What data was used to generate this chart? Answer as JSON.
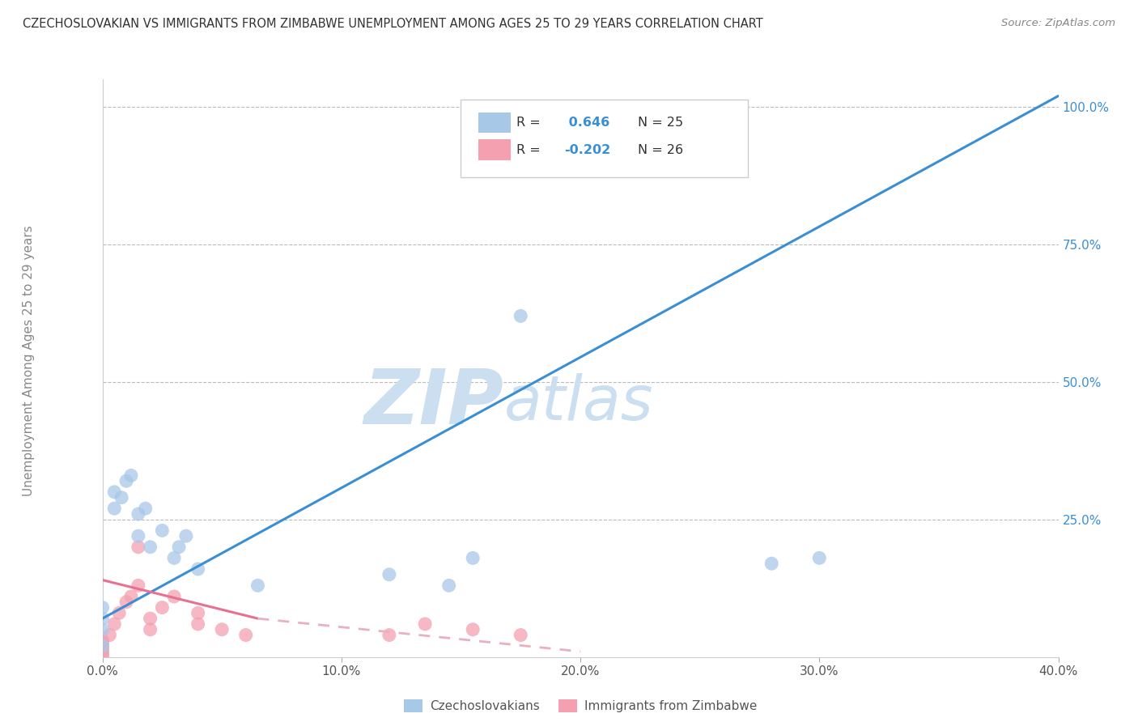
{
  "title": "CZECHOSLOVAKIAN VS IMMIGRANTS FROM ZIMBABWE UNEMPLOYMENT AMONG AGES 25 TO 29 YEARS CORRELATION CHART",
  "source": "Source: ZipAtlas.com",
  "ylabel": "Unemployment Among Ages 25 to 29 years",
  "xlim": [
    0.0,
    0.4
  ],
  "ylim": [
    0.0,
    1.05
  ],
  "xtick_labels": [
    "0.0%",
    "10.0%",
    "20.0%",
    "30.0%",
    "40.0%"
  ],
  "xtick_vals": [
    0.0,
    0.1,
    0.2,
    0.3,
    0.4
  ],
  "ytick_labels": [
    "25.0%",
    "50.0%",
    "75.0%",
    "100.0%"
  ],
  "ytick_vals": [
    0.25,
    0.5,
    0.75,
    1.0
  ],
  "r_czech": 0.646,
  "n_czech": 25,
  "r_zimb": -0.202,
  "n_zimb": 26,
  "czech_color": "#a8c8e8",
  "zimb_color": "#f4a0b0",
  "czech_line_color": "#3a8fd4",
  "zimb_line_color": "#e87090",
  "zimb_line_dash_color": "#e8b0c0",
  "watermark_zip": "ZIP",
  "watermark_atlas": "atlas",
  "watermark_color": "#ccdff0",
  "background_color": "#ffffff",
  "grid_color": "#bbbbbb",
  "legend_r_color": "#3a8fd4",
  "czech_scatter_x": [
    0.0,
    0.0,
    0.0,
    0.0,
    0.005,
    0.005,
    0.008,
    0.01,
    0.012,
    0.015,
    0.015,
    0.018,
    0.02,
    0.025,
    0.03,
    0.032,
    0.035,
    0.04,
    0.065,
    0.12,
    0.145,
    0.155,
    0.175,
    0.28,
    0.3
  ],
  "czech_scatter_y": [
    0.02,
    0.05,
    0.07,
    0.09,
    0.27,
    0.3,
    0.29,
    0.32,
    0.33,
    0.22,
    0.26,
    0.27,
    0.2,
    0.23,
    0.18,
    0.2,
    0.22,
    0.16,
    0.13,
    0.15,
    0.13,
    0.18,
    0.62,
    0.17,
    0.18
  ],
  "zimb_scatter_x": [
    0.0,
    0.0,
    0.0,
    0.0,
    0.0,
    0.0,
    0.0,
    0.003,
    0.005,
    0.007,
    0.01,
    0.012,
    0.015,
    0.015,
    0.02,
    0.02,
    0.025,
    0.03,
    0.04,
    0.04,
    0.05,
    0.06,
    0.12,
    0.135,
    0.155,
    0.175
  ],
  "zimb_scatter_y": [
    0.0,
    0.005,
    0.01,
    0.015,
    0.02,
    0.025,
    0.03,
    0.04,
    0.06,
    0.08,
    0.1,
    0.11,
    0.13,
    0.2,
    0.05,
    0.07,
    0.09,
    0.11,
    0.06,
    0.08,
    0.05,
    0.04,
    0.04,
    0.06,
    0.05,
    0.04
  ],
  "czech_line_x0": 0.0,
  "czech_line_y0": 0.07,
  "czech_line_x1": 0.4,
  "czech_line_y1": 1.02,
  "zimb_line_solid_x0": 0.0,
  "zimb_line_solid_y0": 0.14,
  "zimb_line_solid_x1": 0.065,
  "zimb_line_solid_y1": 0.07,
  "zimb_line_dash_x0": 0.065,
  "zimb_line_dash_y0": 0.07,
  "zimb_line_dash_x1": 0.2,
  "zimb_line_dash_y1": 0.01
}
